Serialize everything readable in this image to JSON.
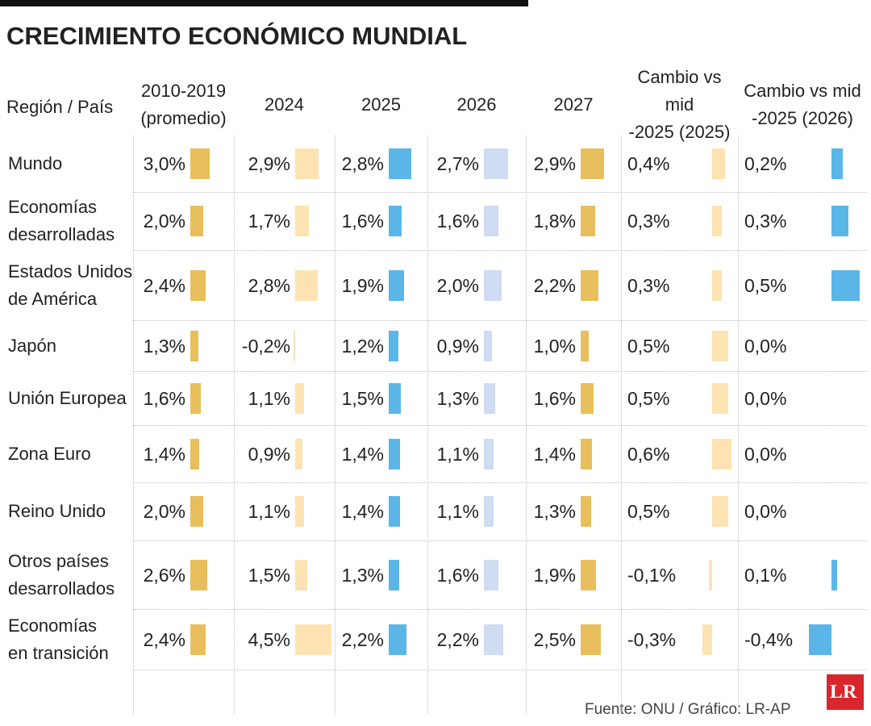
{
  "title": "CRECIMIENTO ECONÓMICO MUNDIAL",
  "columns": [
    "Región / País",
    "2010-2019\n(promedio)",
    "2024",
    "2025",
    "2026",
    "2027",
    "Cambio vs mid\n-2025 (2025)",
    "Cambio vs mid\n-2025 (2026)"
  ],
  "column_colors": [
    "#e8bf5c",
    "#fde3b2",
    "#5bb6e8",
    "#cfdcf2",
    "#e8bf5c",
    "#fde3b2",
    "#5bb6e8"
  ],
  "rows": [
    {
      "name": "Mundo",
      "values": [
        3.0,
        2.9,
        2.8,
        2.7,
        2.9,
        0.4,
        0.2
      ],
      "value_labels": [
        "3,0%",
        "2,9%",
        "2,8%",
        "2,7%",
        "2,9%",
        "0,4%",
        "0,2%"
      ]
    },
    {
      "name": "Economías\ndesarrolladas",
      "values": [
        2.0,
        1.7,
        1.6,
        1.6,
        1.8,
        0.3,
        0.3
      ],
      "value_labels": [
        "2,0%",
        "1,7%",
        "1,6%",
        "1,6%",
        "1,8%",
        "0,3%",
        "0,3%"
      ]
    },
    {
      "name": "Estados Unidos\nde América",
      "values": [
        2.4,
        2.8,
        1.9,
        2.0,
        2.2,
        0.3,
        0.5
      ],
      "value_labels": [
        "2,4%",
        "2,8%",
        "1,9%",
        "2,0%",
        "2,2%",
        "0,3%",
        "0,5%"
      ]
    },
    {
      "name": "Japón",
      "values": [
        1.3,
        -0.2,
        1.2,
        0.9,
        1.0,
        0.5,
        0.0
      ],
      "value_labels": [
        "1,3%",
        "-0,2%",
        "1,2%",
        "0,9%",
        "1,0%",
        "0,5%",
        "0,0%"
      ]
    },
    {
      "name": "Unión Europea",
      "values": [
        1.6,
        1.1,
        1.5,
        1.3,
        1.6,
        0.5,
        0.0
      ],
      "value_labels": [
        "1,6%",
        "1,1%",
        "1,5%",
        "1,3%",
        "1,6%",
        "0,5%",
        "0,0%"
      ]
    },
    {
      "name": "Zona Euro",
      "values": [
        1.4,
        0.9,
        1.4,
        1.1,
        1.4,
        0.6,
        0.0
      ],
      "value_labels": [
        "1,4%",
        "0,9%",
        "1,4%",
        "1,1%",
        "1,4%",
        "0,6%",
        "0,0%"
      ]
    },
    {
      "name": "Reino Unido",
      "values": [
        2.0,
        1.1,
        1.4,
        1.1,
        1.3,
        0.5,
        0.0
      ],
      "value_labels": [
        "2,0%",
        "1,1%",
        "1,4%",
        "1,1%",
        "1,3%",
        "0,5%",
        "0,0%"
      ]
    },
    {
      "name": "Otros países\ndesarrollados",
      "values": [
        2.6,
        1.5,
        1.3,
        1.6,
        1.9,
        -0.1,
        0.1
      ],
      "value_labels": [
        "2,6%",
        "1,5%",
        "1,3%",
        "1,6%",
        "1,9%",
        "-0,1%",
        "0,1%"
      ]
    },
    {
      "name": "Economías\nen transición",
      "values": [
        2.4,
        4.5,
        2.2,
        2.2,
        2.5,
        -0.3,
        -0.4
      ],
      "value_labels": [
        "2,4%",
        "4,5%",
        "2,2%",
        "2,2%",
        "2,5%",
        "-0,3%",
        "-0,4%"
      ]
    }
  ],
  "source": "Fuente:  ONU / Gráfico: LR-AP",
  "logo": "LR"
}
